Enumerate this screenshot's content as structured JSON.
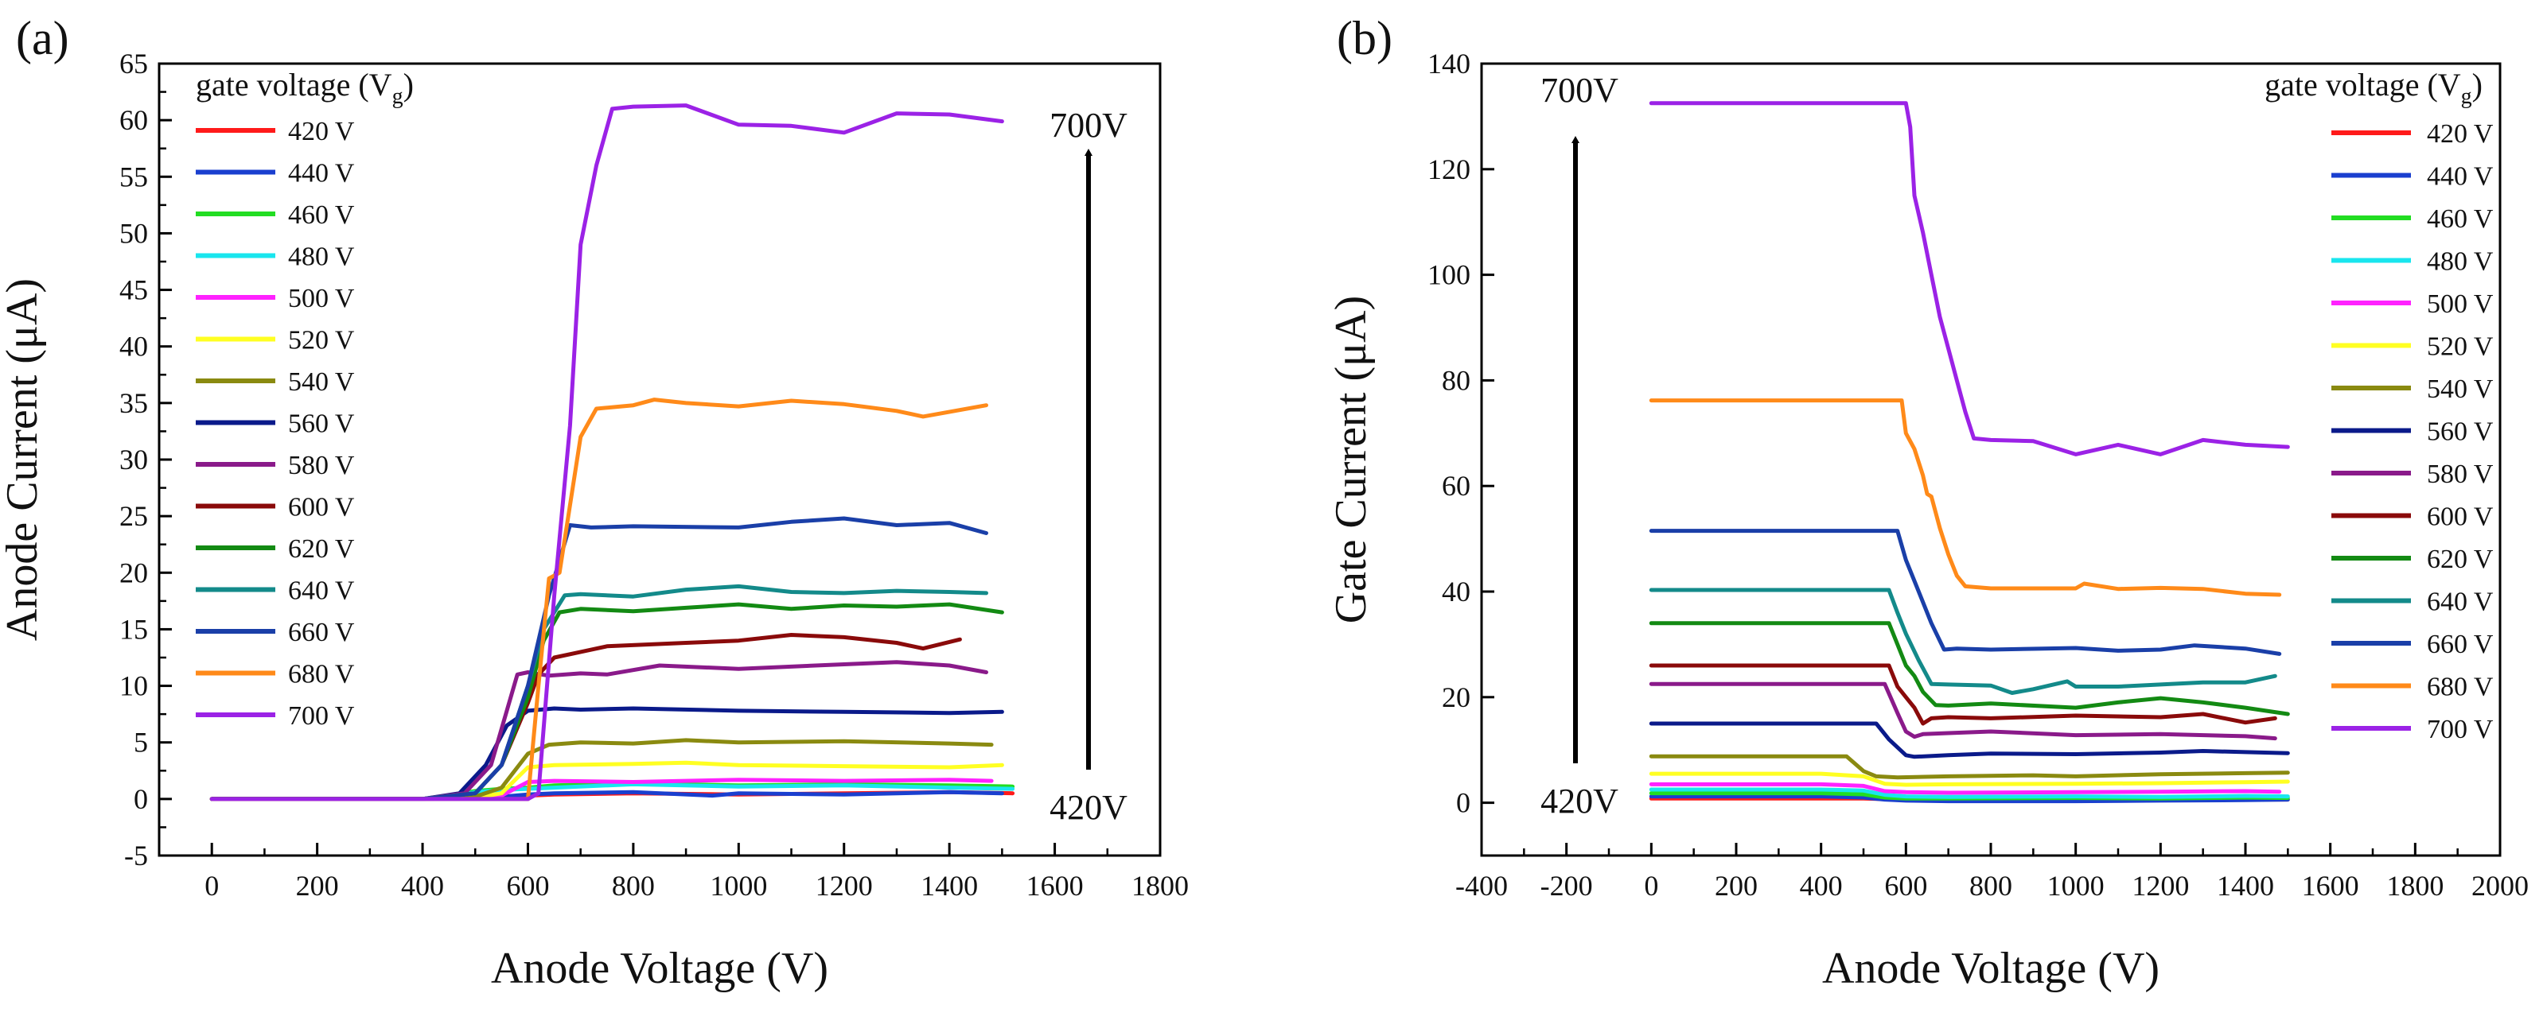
{
  "series_labels": [
    "420 V",
    "440 V",
    "460 V",
    "480 V",
    "500 V",
    "520 V",
    "540 V",
    "560 V",
    "580 V",
    "600 V",
    "620 V",
    "640 V",
    "660 V",
    "680 V",
    "700 V"
  ],
  "series_colors": [
    "#ff1a1a",
    "#1a3fcf",
    "#22dd22",
    "#19e6ee",
    "#ff22ff",
    "#ffff22",
    "#8a8a10",
    "#0a1a8a",
    "#8a1a8a",
    "#8a0a0a",
    "#138a13",
    "#138a8a",
    "#1a3fa8",
    "#ff8a19",
    "#9b22e6"
  ],
  "chart_data": [
    {
      "type": "line",
      "panel_label": "(a)",
      "title": "",
      "xlabel": "Anode Voltage (V)",
      "ylabel": "Anode Current (μA)",
      "xlim": [
        -100,
        1800
      ],
      "ylim": [
        -5,
        65
      ],
      "x_ticks": [
        0,
        200,
        400,
        600,
        800,
        1000,
        1200,
        1400,
        1600,
        1800
      ],
      "y_ticks": [
        -5,
        0,
        5,
        10,
        15,
        20,
        25,
        30,
        35,
        40,
        45,
        50,
        55,
        60,
        65
      ],
      "legend_title": "gate voltage (V",
      "legend_title_sub": "g",
      "legend_title_close": ")",
      "legend_position": "top-left",
      "arrow_top_label": "700V",
      "arrow_bottom_label": "420V",
      "series": [
        {
          "name": "420 V",
          "x": [
            0,
            400,
            500,
            550,
            600,
            650,
            800,
            1000,
            1200,
            1400,
            1520
          ],
          "y": [
            0,
            0,
            0.1,
            0.2,
            0.3,
            0.4,
            0.5,
            0.4,
            0.5,
            0.6,
            0.5
          ]
        },
        {
          "name": "440 V",
          "x": [
            0,
            400,
            500,
            550,
            600,
            650,
            800,
            950,
            1000,
            1200,
            1400,
            1500
          ],
          "y": [
            0,
            0,
            0.1,
            0.2,
            0.4,
            0.5,
            0.6,
            0.3,
            0.5,
            0.4,
            0.6,
            0.5
          ]
        },
        {
          "name": "460 V",
          "x": [
            0,
            400,
            450,
            500,
            550,
            600,
            650,
            800,
            1000,
            1200,
            1400,
            1520
          ],
          "y": [
            0,
            0,
            0.3,
            0.7,
            0.9,
            1.0,
            1.2,
            1.4,
            1.2,
            1.3,
            1.2,
            1.1
          ]
        },
        {
          "name": "480 V",
          "x": [
            0,
            400,
            450,
            500,
            550,
            600,
            650,
            800,
            1000,
            1200,
            1400,
            1520
          ],
          "y": [
            0,
            0,
            0.3,
            0.6,
            0.8,
            0.9,
            1.0,
            1.3,
            1.1,
            1.2,
            1.0,
            0.9
          ]
        },
        {
          "name": "500 V",
          "x": [
            0,
            400,
            500,
            550,
            600,
            650,
            800,
            1000,
            1200,
            1400,
            1480
          ],
          "y": [
            0,
            0,
            0.1,
            0.3,
            1.5,
            1.6,
            1.5,
            1.7,
            1.6,
            1.7,
            1.6
          ]
        },
        {
          "name": "520 V",
          "x": [
            0,
            400,
            500,
            550,
            600,
            650,
            800,
            900,
            1000,
            1200,
            1400,
            1500
          ],
          "y": [
            0,
            0,
            0.1,
            0.5,
            2.8,
            3.0,
            3.1,
            3.2,
            3.0,
            2.9,
            2.8,
            3.0
          ]
        },
        {
          "name": "540 V",
          "x": [
            0,
            400,
            500,
            550,
            600,
            640,
            700,
            800,
            900,
            1000,
            1200,
            1400,
            1480
          ],
          "y": [
            0,
            0,
            0.2,
            1.0,
            4.0,
            4.8,
            5.0,
            4.9,
            5.2,
            5.0,
            5.1,
            4.9,
            4.8
          ]
        },
        {
          "name": "560 V",
          "x": [
            0,
            400,
            470,
            520,
            560,
            600,
            650,
            700,
            800,
            1000,
            1200,
            1400,
            1500
          ],
          "y": [
            0,
            0,
            0.5,
            3.0,
            6.5,
            7.8,
            8.0,
            7.9,
            8.0,
            7.8,
            7.7,
            7.6,
            7.7
          ]
        },
        {
          "name": "580 V",
          "x": [
            0,
            400,
            480,
            530,
            580,
            600,
            640,
            700,
            750,
            850,
            1000,
            1200,
            1300,
            1400,
            1470
          ],
          "y": [
            0,
            0,
            0.5,
            3.0,
            11.0,
            11.2,
            10.9,
            11.1,
            11.0,
            11.8,
            11.5,
            11.9,
            12.1,
            11.8,
            11.2
          ]
        },
        {
          "name": "600 V",
          "x": [
            0,
            400,
            500,
            550,
            600,
            620,
            650,
            700,
            750,
            900,
            1000,
            1100,
            1200,
            1300,
            1350,
            1420
          ],
          "y": [
            0,
            0,
            0.5,
            3.0,
            8.5,
            11.0,
            12.5,
            13.0,
            13.5,
            13.8,
            14.0,
            14.5,
            14.3,
            13.8,
            13.3,
            14.1
          ]
        },
        {
          "name": "620 V",
          "x": [
            0,
            400,
            500,
            550,
            600,
            630,
            660,
            700,
            800,
            900,
            1000,
            1100,
            1200,
            1300,
            1400,
            1500
          ],
          "y": [
            0,
            0,
            0.5,
            3.0,
            9.0,
            14.0,
            16.5,
            16.8,
            16.6,
            16.9,
            17.2,
            16.8,
            17.1,
            17.0,
            17.2,
            16.5
          ]
        },
        {
          "name": "640 V",
          "x": [
            0,
            400,
            500,
            550,
            600,
            630,
            670,
            700,
            800,
            900,
            1000,
            1100,
            1200,
            1300,
            1400,
            1470
          ],
          "y": [
            0,
            0,
            0.5,
            3.0,
            10.0,
            15.0,
            18.0,
            18.1,
            17.9,
            18.5,
            18.8,
            18.3,
            18.2,
            18.4,
            18.3,
            18.2
          ]
        },
        {
          "name": "660 V",
          "x": [
            0,
            400,
            500,
            550,
            600,
            640,
            680,
            720,
            800,
            1000,
            1100,
            1200,
            1300,
            1400,
            1470
          ],
          "y": [
            0,
            0,
            0.5,
            3.0,
            10.0,
            18.0,
            24.2,
            24.0,
            24.1,
            24.0,
            24.5,
            24.8,
            24.2,
            24.4,
            23.5
          ]
        },
        {
          "name": "680 V",
          "x": [
            0,
            600,
            620,
            640,
            660,
            700,
            730,
            800,
            840,
            900,
            1000,
            1100,
            1200,
            1300,
            1350,
            1470
          ],
          "y": [
            0,
            0,
            10.0,
            19.5,
            20.0,
            32.0,
            34.5,
            34.8,
            35.3,
            35.0,
            34.7,
            35.2,
            34.9,
            34.3,
            33.8,
            34.8
          ]
        },
        {
          "name": "700 V",
          "x": [
            0,
            600,
            620,
            650,
            680,
            700,
            730,
            760,
            800,
            900,
            1000,
            1100,
            1200,
            1300,
            1400,
            1500
          ],
          "y": [
            0,
            0,
            0.5,
            18.0,
            33.0,
            49.0,
            56.0,
            61.0,
            61.2,
            61.3,
            59.6,
            59.5,
            58.9,
            60.6,
            60.5,
            59.9
          ]
        }
      ]
    },
    {
      "type": "line",
      "panel_label": "(b)",
      "title": "",
      "xlabel": "Anode Voltage (V)",
      "ylabel": "Gate Current (μA)",
      "xlim": [
        -400,
        2000
      ],
      "ylim": [
        -10,
        140
      ],
      "x_ticks": [
        -400,
        -200,
        0,
        200,
        400,
        600,
        800,
        1000,
        1200,
        1400,
        1600,
        1800,
        2000
      ],
      "y_ticks": [
        0,
        20,
        40,
        60,
        80,
        100,
        120,
        140
      ],
      "legend_title": "gate voltage (V",
      "legend_title_sub": "g",
      "legend_title_close": ")",
      "legend_position": "top-right",
      "arrow_top_label": "700V",
      "arrow_bottom_label": "420V",
      "series": [
        {
          "name": "420 V",
          "x": [
            0,
            200,
            400,
            500,
            550,
            600,
            700,
            1000,
            1200,
            1400,
            1500
          ],
          "y": [
            0.8,
            0.8,
            0.8,
            0.8,
            0.7,
            0.5,
            0.5,
            0.5,
            0.5,
            0.6,
            0.6
          ]
        },
        {
          "name": "440 V",
          "x": [
            0,
            200,
            400,
            500,
            550,
            600,
            700,
            1000,
            1200,
            1400,
            1500
          ],
          "y": [
            1.2,
            1.2,
            1.2,
            1.0,
            0.6,
            0.4,
            0.3,
            0.3,
            0.4,
            0.5,
            0.6
          ]
        },
        {
          "name": "460 V",
          "x": [
            0,
            200,
            400,
            500,
            550,
            600,
            700,
            1000,
            1200,
            1400,
            1500
          ],
          "y": [
            1.8,
            1.8,
            1.8,
            1.6,
            1.0,
            0.8,
            0.8,
            0.9,
            0.8,
            1.0,
            0.9
          ]
        },
        {
          "name": "480 V",
          "x": [
            0,
            200,
            400,
            500,
            550,
            600,
            700,
            1000,
            1200,
            1400,
            1500
          ],
          "y": [
            2.5,
            2.5,
            2.5,
            2.3,
            1.5,
            1.2,
            1.1,
            1.2,
            1.1,
            1.3,
            1.2
          ]
        },
        {
          "name": "500 V",
          "x": [
            0,
            200,
            400,
            500,
            550,
            600,
            700,
            1000,
            1200,
            1400,
            1480
          ],
          "y": [
            3.5,
            3.5,
            3.5,
            3.2,
            2.2,
            2.0,
            1.9,
            2.0,
            2.1,
            2.2,
            2.1
          ]
        },
        {
          "name": "520 V",
          "x": [
            0,
            200,
            400,
            500,
            550,
            600,
            700,
            1000,
            1200,
            1400,
            1500
          ],
          "y": [
            5.5,
            5.5,
            5.5,
            5.0,
            3.6,
            3.4,
            3.5,
            3.6,
            3.7,
            3.9,
            4.0
          ]
        },
        {
          "name": "540 V",
          "x": [
            0,
            200,
            460,
            500,
            530,
            580,
            700,
            900,
            1000,
            1200,
            1400,
            1500
          ],
          "y": [
            8.8,
            8.8,
            8.8,
            6.0,
            5.0,
            4.8,
            5.0,
            5.2,
            5.0,
            5.4,
            5.6,
            5.7
          ]
        },
        {
          "name": "560 V",
          "x": [
            0,
            200,
            530,
            560,
            580,
            600,
            620,
            700,
            800,
            1000,
            1200,
            1300,
            1400,
            1500
          ],
          "y": [
            15.0,
            15.0,
            15.0,
            12.0,
            10.5,
            9.0,
            8.7,
            9.0,
            9.3,
            9.2,
            9.5,
            9.8,
            9.6,
            9.4
          ]
        },
        {
          "name": "580 V",
          "x": [
            0,
            200,
            550,
            580,
            600,
            620,
            640,
            700,
            800,
            1000,
            1200,
            1400,
            1470
          ],
          "y": [
            22.5,
            22.5,
            22.5,
            17.0,
            13.5,
            12.5,
            13.0,
            13.2,
            13.5,
            12.8,
            13.0,
            12.6,
            12.2
          ]
        },
        {
          "name": "600 V",
          "x": [
            0,
            200,
            560,
            580,
            600,
            620,
            640,
            660,
            700,
            800,
            1000,
            1200,
            1300,
            1400,
            1470
          ],
          "y": [
            26.0,
            26.0,
            26.0,
            22.0,
            20.0,
            18.0,
            15.0,
            16.0,
            16.2,
            16.0,
            16.5,
            16.2,
            16.8,
            15.2,
            16.0
          ]
        },
        {
          "name": "620 V",
          "x": [
            0,
            200,
            560,
            580,
            600,
            620,
            640,
            670,
            700,
            800,
            1000,
            1100,
            1200,
            1300,
            1400,
            1500
          ],
          "y": [
            34.0,
            34.0,
            34.0,
            30.0,
            26.0,
            24.0,
            21.0,
            18.5,
            18.4,
            18.8,
            18.0,
            19.0,
            19.8,
            19.0,
            18.0,
            16.8
          ]
        },
        {
          "name": "640 V",
          "x": [
            0,
            200,
            560,
            580,
            600,
            630,
            660,
            700,
            800,
            850,
            900,
            980,
            1000,
            1100,
            1200,
            1300,
            1400,
            1470
          ],
          "y": [
            40.3,
            40.3,
            40.3,
            36.0,
            32.0,
            27.0,
            22.5,
            22.4,
            22.2,
            20.8,
            21.5,
            23.0,
            22.0,
            22.0,
            22.4,
            22.8,
            22.8,
            24.0
          ]
        },
        {
          "name": "660 V",
          "x": [
            0,
            200,
            580,
            600,
            620,
            640,
            660,
            690,
            720,
            800,
            1000,
            1100,
            1200,
            1280,
            1400,
            1480
          ],
          "y": [
            51.5,
            51.5,
            51.5,
            46.0,
            42.0,
            38.0,
            34.0,
            29.0,
            29.2,
            29.0,
            29.3,
            28.8,
            29.0,
            29.8,
            29.2,
            28.2
          ]
        },
        {
          "name": "680 V",
          "x": [
            0,
            200,
            590,
            600,
            620,
            640,
            650,
            660,
            680,
            700,
            720,
            740,
            800,
            1000,
            1020,
            1100,
            1200,
            1300,
            1400,
            1480
          ],
          "y": [
            76.2,
            76.2,
            76.2,
            70.0,
            67.0,
            62.0,
            58.5,
            58.0,
            52.0,
            47.0,
            43.0,
            41.0,
            40.6,
            40.6,
            41.5,
            40.5,
            40.7,
            40.5,
            39.6,
            39.4
          ]
        },
        {
          "name": "700 V",
          "x": [
            0,
            200,
            600,
            610,
            620,
            640,
            660,
            680,
            700,
            720,
            740,
            760,
            800,
            900,
            1000,
            1100,
            1200,
            1300,
            1400,
            1500
          ],
          "y": [
            132.5,
            132.5,
            132.5,
            128.0,
            115.0,
            108.0,
            100.0,
            92.0,
            86.0,
            80.0,
            74.0,
            69.0,
            68.7,
            68.5,
            66.0,
            67.8,
            66.0,
            68.7,
            67.8,
            67.4
          ]
        }
      ]
    }
  ]
}
